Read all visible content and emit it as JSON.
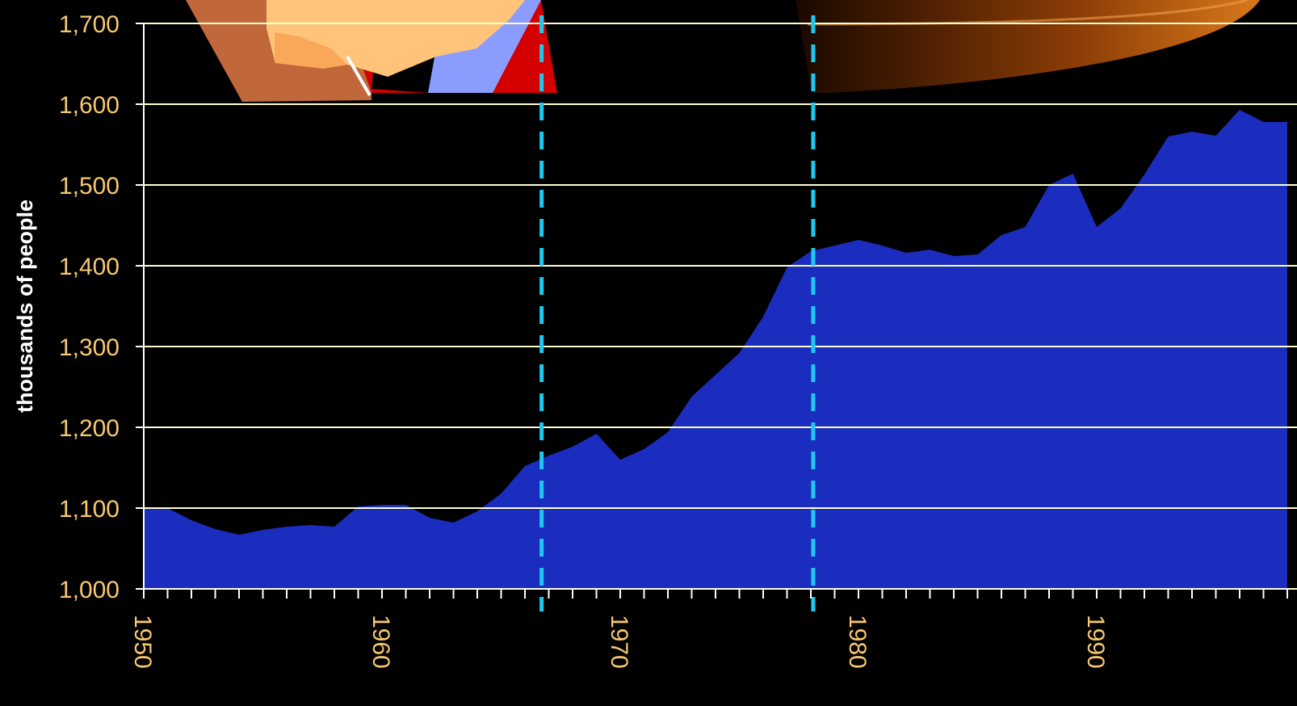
{
  "chart_data": {
    "type": "area",
    "y_label": "thousands of people",
    "x": [
      1950,
      1951,
      1952,
      1953,
      1954,
      1955,
      1956,
      1957,
      1958,
      1959,
      1960,
      1961,
      1962,
      1963,
      1964,
      1965,
      1966,
      1967,
      1968,
      1969,
      1970,
      1971,
      1972,
      1973,
      1974,
      1975,
      1976,
      1977,
      1978,
      1979,
      1980,
      1981,
      1982,
      1983,
      1984,
      1985,
      1986,
      1987,
      1988,
      1989,
      1990,
      1991,
      1992,
      1993,
      1994,
      1995,
      1996,
      1997,
      1998
    ],
    "values": [
      1099,
      1100,
      1085,
      1074,
      1067,
      1073,
      1077,
      1079,
      1077,
      1102,
      1104,
      1104,
      1088,
      1082,
      1096,
      1118,
      1152,
      1165,
      1176,
      1192,
      1160,
      1173,
      1194,
      1238,
      1265,
      1292,
      1337,
      1398,
      1418,
      1425,
      1432,
      1425,
      1416,
      1420,
      1412,
      1414,
      1438,
      1448,
      1500,
      1514,
      1448,
      1471,
      1513,
      1560,
      1566,
      1561,
      1593,
      1578,
      1578
    ],
    "color": "#1a2dbf",
    "xlim": [
      1950,
      1998
    ],
    "xticks": [
      1950,
      1960,
      1970,
      1980,
      1990
    ],
    "ylim": [
      1000,
      1700
    ],
    "yticks": [
      {
        "value": 1000,
        "label": "1,000"
      },
      {
        "value": 1100,
        "label": "1,100"
      },
      {
        "value": 1200,
        "label": "1,200"
      },
      {
        "value": 1300,
        "label": "1,300"
      },
      {
        "value": 1400,
        "label": "1,400"
      },
      {
        "value": 1500,
        "label": "1,500"
      },
      {
        "value": 1600,
        "label": "1,600"
      },
      {
        "value": 1700,
        "label": "1,700"
      }
    ],
    "grid": true,
    "grid_color": "#ffffcc",
    "vlines": [
      1966.7,
      1978.1
    ],
    "vline_color": "#1ec8f0"
  }
}
